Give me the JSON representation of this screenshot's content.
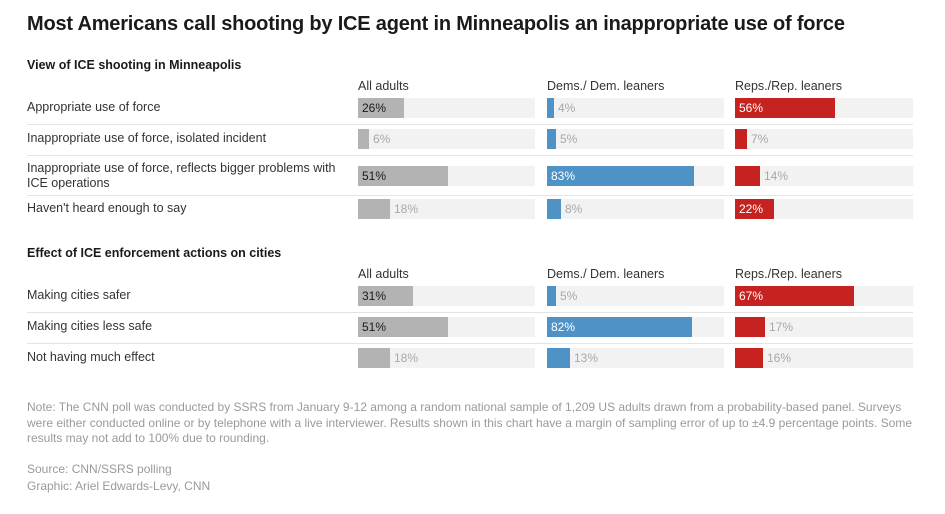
{
  "title": "Most Americans call shooting by ICE agent in Minneapolis an inappropriate use of force",
  "colors": {
    "all_adults": "#b3b3b3",
    "dems": "#4f93c6",
    "reps": "#c62320",
    "track": "#f2f2f2"
  },
  "chart_data": [
    {
      "type": "bar",
      "title": "View of ICE shooting in Minneapolis",
      "unit": "%",
      "xlim": [
        0,
        100
      ],
      "categories": [
        "Appropriate use of force",
        "Inappropriate use of force, isolated incident",
        "Inappropriate use of force, reflects bigger problems with ICE operations",
        "Haven't heard enough to say"
      ],
      "series": [
        {
          "name": "All adults",
          "values": [
            26,
            6,
            51,
            18
          ],
          "labels": [
            "26%",
            "6%",
            "51%",
            "18%"
          ]
        },
        {
          "name": "Dems./ Dem. leaners",
          "values": [
            4,
            5,
            83,
            8
          ],
          "labels": [
            "4%",
            "5%",
            "83%",
            "8%"
          ]
        },
        {
          "name": "Reps./Rep. leaners",
          "values": [
            56,
            7,
            14,
            22
          ],
          "labels": [
            "56%",
            "7%",
            "14%",
            "22%"
          ]
        }
      ]
    },
    {
      "type": "bar",
      "title": "Effect of ICE enforcement actions on cities",
      "unit": "%",
      "xlim": [
        0,
        100
      ],
      "categories": [
        "Making cities safer",
        "Making cities less safe",
        "Not having much effect"
      ],
      "series": [
        {
          "name": "All adults",
          "values": [
            31,
            51,
            18
          ],
          "labels": [
            "31%",
            "51%",
            "18%"
          ]
        },
        {
          "name": "Dems./ Dem. leaners",
          "values": [
            5,
            82,
            13
          ],
          "labels": [
            "5%",
            "82%",
            "13%"
          ]
        },
        {
          "name": "Reps./Rep. leaners",
          "values": [
            67,
            17,
            16
          ],
          "labels": [
            "67%",
            "17%",
            "16%"
          ]
        }
      ]
    }
  ],
  "note": "Note: The CNN poll was conducted by SSRS from January 9-12 among a random national sample of 1,209 US adults drawn from a probability-based panel. Surveys were either conducted online or by telephone with a live interviewer. Results shown in this chart have a margin of sampling error of up to ±4.9 percentage points. Some results may not add to 100% due to rounding.",
  "source": "Source: CNN/SSRS polling",
  "graphic": "Graphic: Ariel Edwards-Levy, CNN"
}
